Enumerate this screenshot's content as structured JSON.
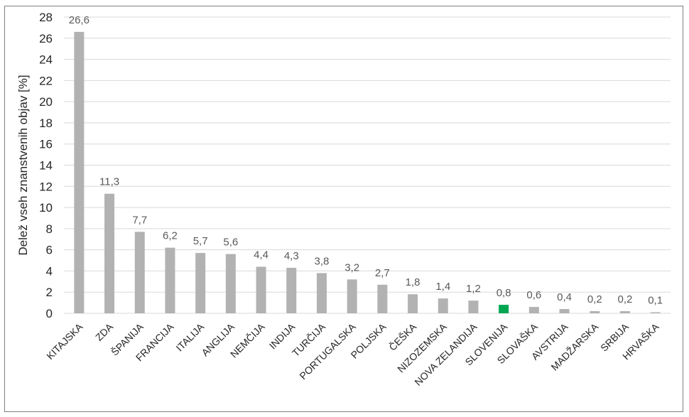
{
  "chart_data": {
    "type": "bar",
    "ylabel": "Delež vseh znanstvenih objav [%]",
    "ylim": [
      0,
      28
    ],
    "yticks": [
      0,
      2,
      4,
      6,
      8,
      10,
      12,
      14,
      16,
      18,
      20,
      22,
      24,
      26,
      28
    ],
    "grid": true,
    "legend": "none",
    "categories": [
      "KITAJSKA",
      "ZDA",
      "ŠPANIJA",
      "FRANCIJA",
      "ITALIJA",
      "ANGLIJA",
      "NEMČIJA",
      "INDIJA",
      "TURČIJA",
      "PORTUGALSKA",
      "POLJSKA",
      "ČEŠKA",
      "NIZOZEMSKA",
      "NOVA ZELANDIJA",
      "SLOVENIJA",
      "SLOVAŠKA",
      "AVSTRIJA",
      "MADŽARSKA",
      "SRBIJA",
      "HRVAŠKA"
    ],
    "values": [
      26.6,
      11.3,
      7.7,
      6.2,
      5.7,
      5.6,
      4.4,
      4.3,
      3.8,
      3.2,
      2.7,
      1.8,
      1.4,
      1.2,
      0.8,
      0.6,
      0.4,
      0.2,
      0.2,
      0.1
    ],
    "data_labels": [
      "26,6",
      "11,3",
      "7,7",
      "6,2",
      "5,7",
      "5,6",
      "4,4",
      "4,3",
      "3,8",
      "3,2",
      "2,7",
      "1,8",
      "1,4",
      "1,2",
      "0,8",
      "0,6",
      "0,4",
      "0,2",
      "0,2",
      "0,1"
    ],
    "bar_color": "#b2b2b2",
    "highlight_category": "SLOVENIJA",
    "highlight_color": "#00a651",
    "gridline_color": "#d9d9d9"
  }
}
